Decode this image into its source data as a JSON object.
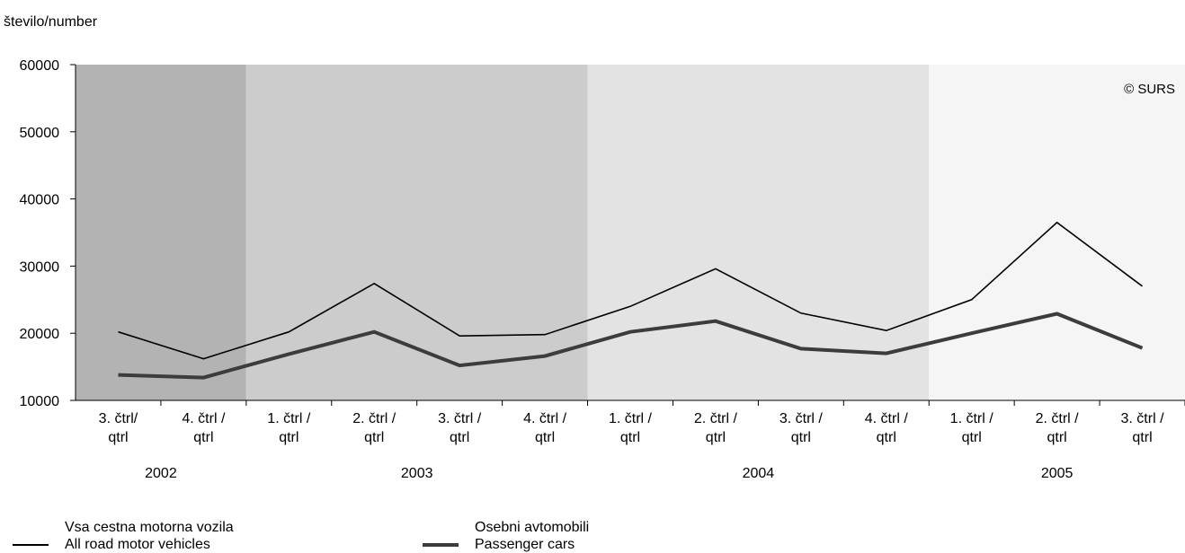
{
  "chart_data": {
    "type": "line",
    "ylabel": "število/number",
    "ylim": [
      10000,
      60000
    ],
    "yticks": [
      10000,
      20000,
      30000,
      40000,
      50000,
      60000
    ],
    "categories": [
      [
        "3. čtrl/",
        "qtrl"
      ],
      [
        "4. čtrl /",
        "qtrl"
      ],
      [
        "1. čtrl /",
        "qtrl"
      ],
      [
        "2. čtrl /",
        "qtrl"
      ],
      [
        "3. čtrl /",
        "qtrl"
      ],
      [
        "4. čtrl /",
        "qtrl"
      ],
      [
        "1. čtrl /",
        "qtrl"
      ],
      [
        "2. čtrl /",
        "qtrl"
      ],
      [
        "3. čtrl /",
        "qtrl"
      ],
      [
        "4. čtrl /",
        "qtrl"
      ],
      [
        "1. čtrl /",
        "qtrl"
      ],
      [
        "2. čtrl /",
        "qtrl"
      ],
      [
        "3. čtrl /",
        "qtrl"
      ]
    ],
    "years": [
      {
        "label": "2002",
        "start": 0,
        "end": 1,
        "color": "#b3b3b3"
      },
      {
        "label": "2003",
        "start": 2,
        "end": 5,
        "color": "#cccccc"
      },
      {
        "label": "2004",
        "start": 6,
        "end": 9,
        "color": "#e3e3e3"
      },
      {
        "label": "2005",
        "start": 10,
        "end": 12,
        "color": "#f5f5f5"
      }
    ],
    "series": [
      {
        "name_lines": [
          "Vsa cestna motorna vozila",
          "All road motor vehicles"
        ],
        "color": "#000000",
        "values": [
          20200,
          16200,
          20200,
          27400,
          19600,
          19800,
          24000,
          29600,
          23000,
          20400,
          25000,
          36500,
          27000
        ]
      },
      {
        "name_lines": [
          "Osebni avtomobili",
          "Passenger cars"
        ],
        "color": "#3c3c3c",
        "values": [
          13800,
          13400,
          16900,
          20200,
          15200,
          16600,
          20200,
          21800,
          17700,
          17000,
          20000,
          22900,
          17800
        ]
      }
    ],
    "annotation": "© SURS",
    "grid": false,
    "legend_position": "bottom"
  }
}
